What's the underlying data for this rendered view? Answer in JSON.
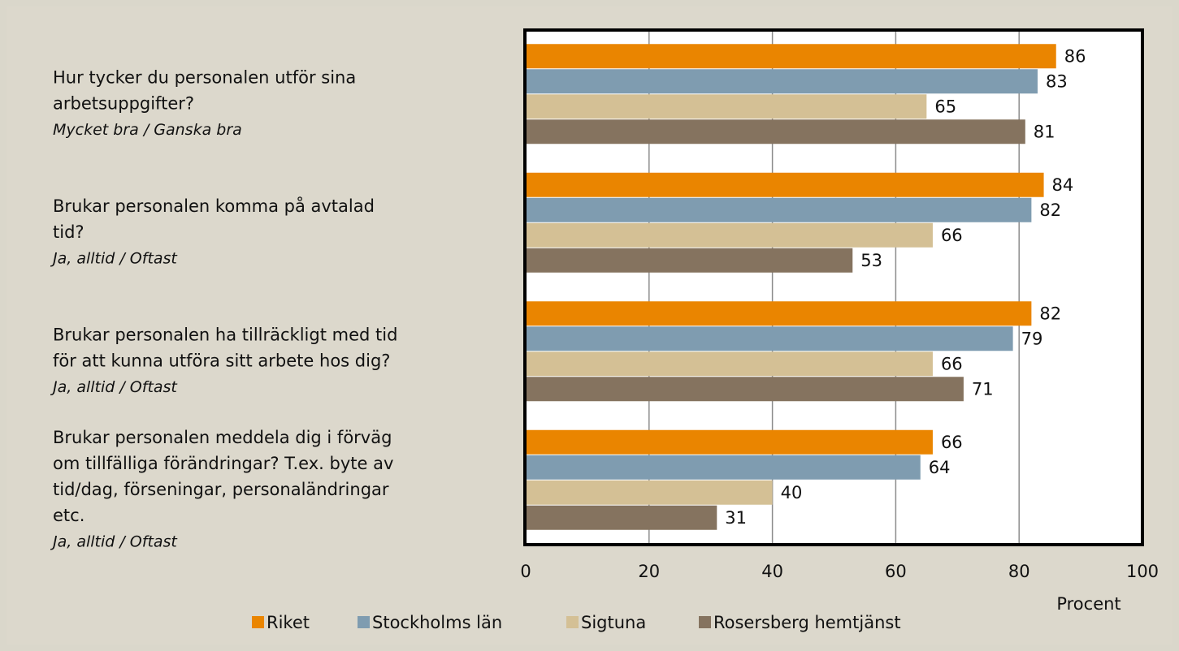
{
  "chart_data": {
    "type": "hbar",
    "categories": [
      [
        "Hur tycker du personalen utför sina",
        "arbetsuppgifter?"
      ],
      [
        "Brukar personalen komma på avtalad",
        "tid?"
      ],
      [
        "Brukar personalen ha tillräckligt med tid",
        "för att kunna utföra sitt arbete hos dig?"
      ],
      [
        "Brukar personalen meddela dig i förväg",
        "om tillfälliga förändringar? T.ex. byte av",
        "tid/dag, förseningar, personaländringar",
        "etc."
      ]
    ],
    "category_notes": [
      "Mycket bra / Ganska bra",
      "Ja, alltid / Oftast",
      "Ja, alltid / Oftast",
      "Ja, alltid / Oftast"
    ],
    "series": [
      {
        "name": "Riket",
        "color": "#ea8500",
        "values": [
          86,
          84,
          82,
          66
        ]
      },
      {
        "name": "Stockholms län",
        "color": "#7f9cb0",
        "values": [
          83,
          82,
          79,
          64
        ]
      },
      {
        "name": "Sigtuna",
        "color": "#d4c095",
        "values": [
          65,
          66,
          66,
          40
        ]
      },
      {
        "name": "Rosersberg hemtjänst",
        "color": "#85735f",
        "values": [
          81,
          53,
          71,
          31
        ]
      }
    ],
    "x_label": "Procent",
    "xlim": [
      0,
      100
    ],
    "xticks": [
      0,
      20,
      40,
      60,
      80,
      100
    ],
    "grid": true,
    "legend": "bottom"
  }
}
